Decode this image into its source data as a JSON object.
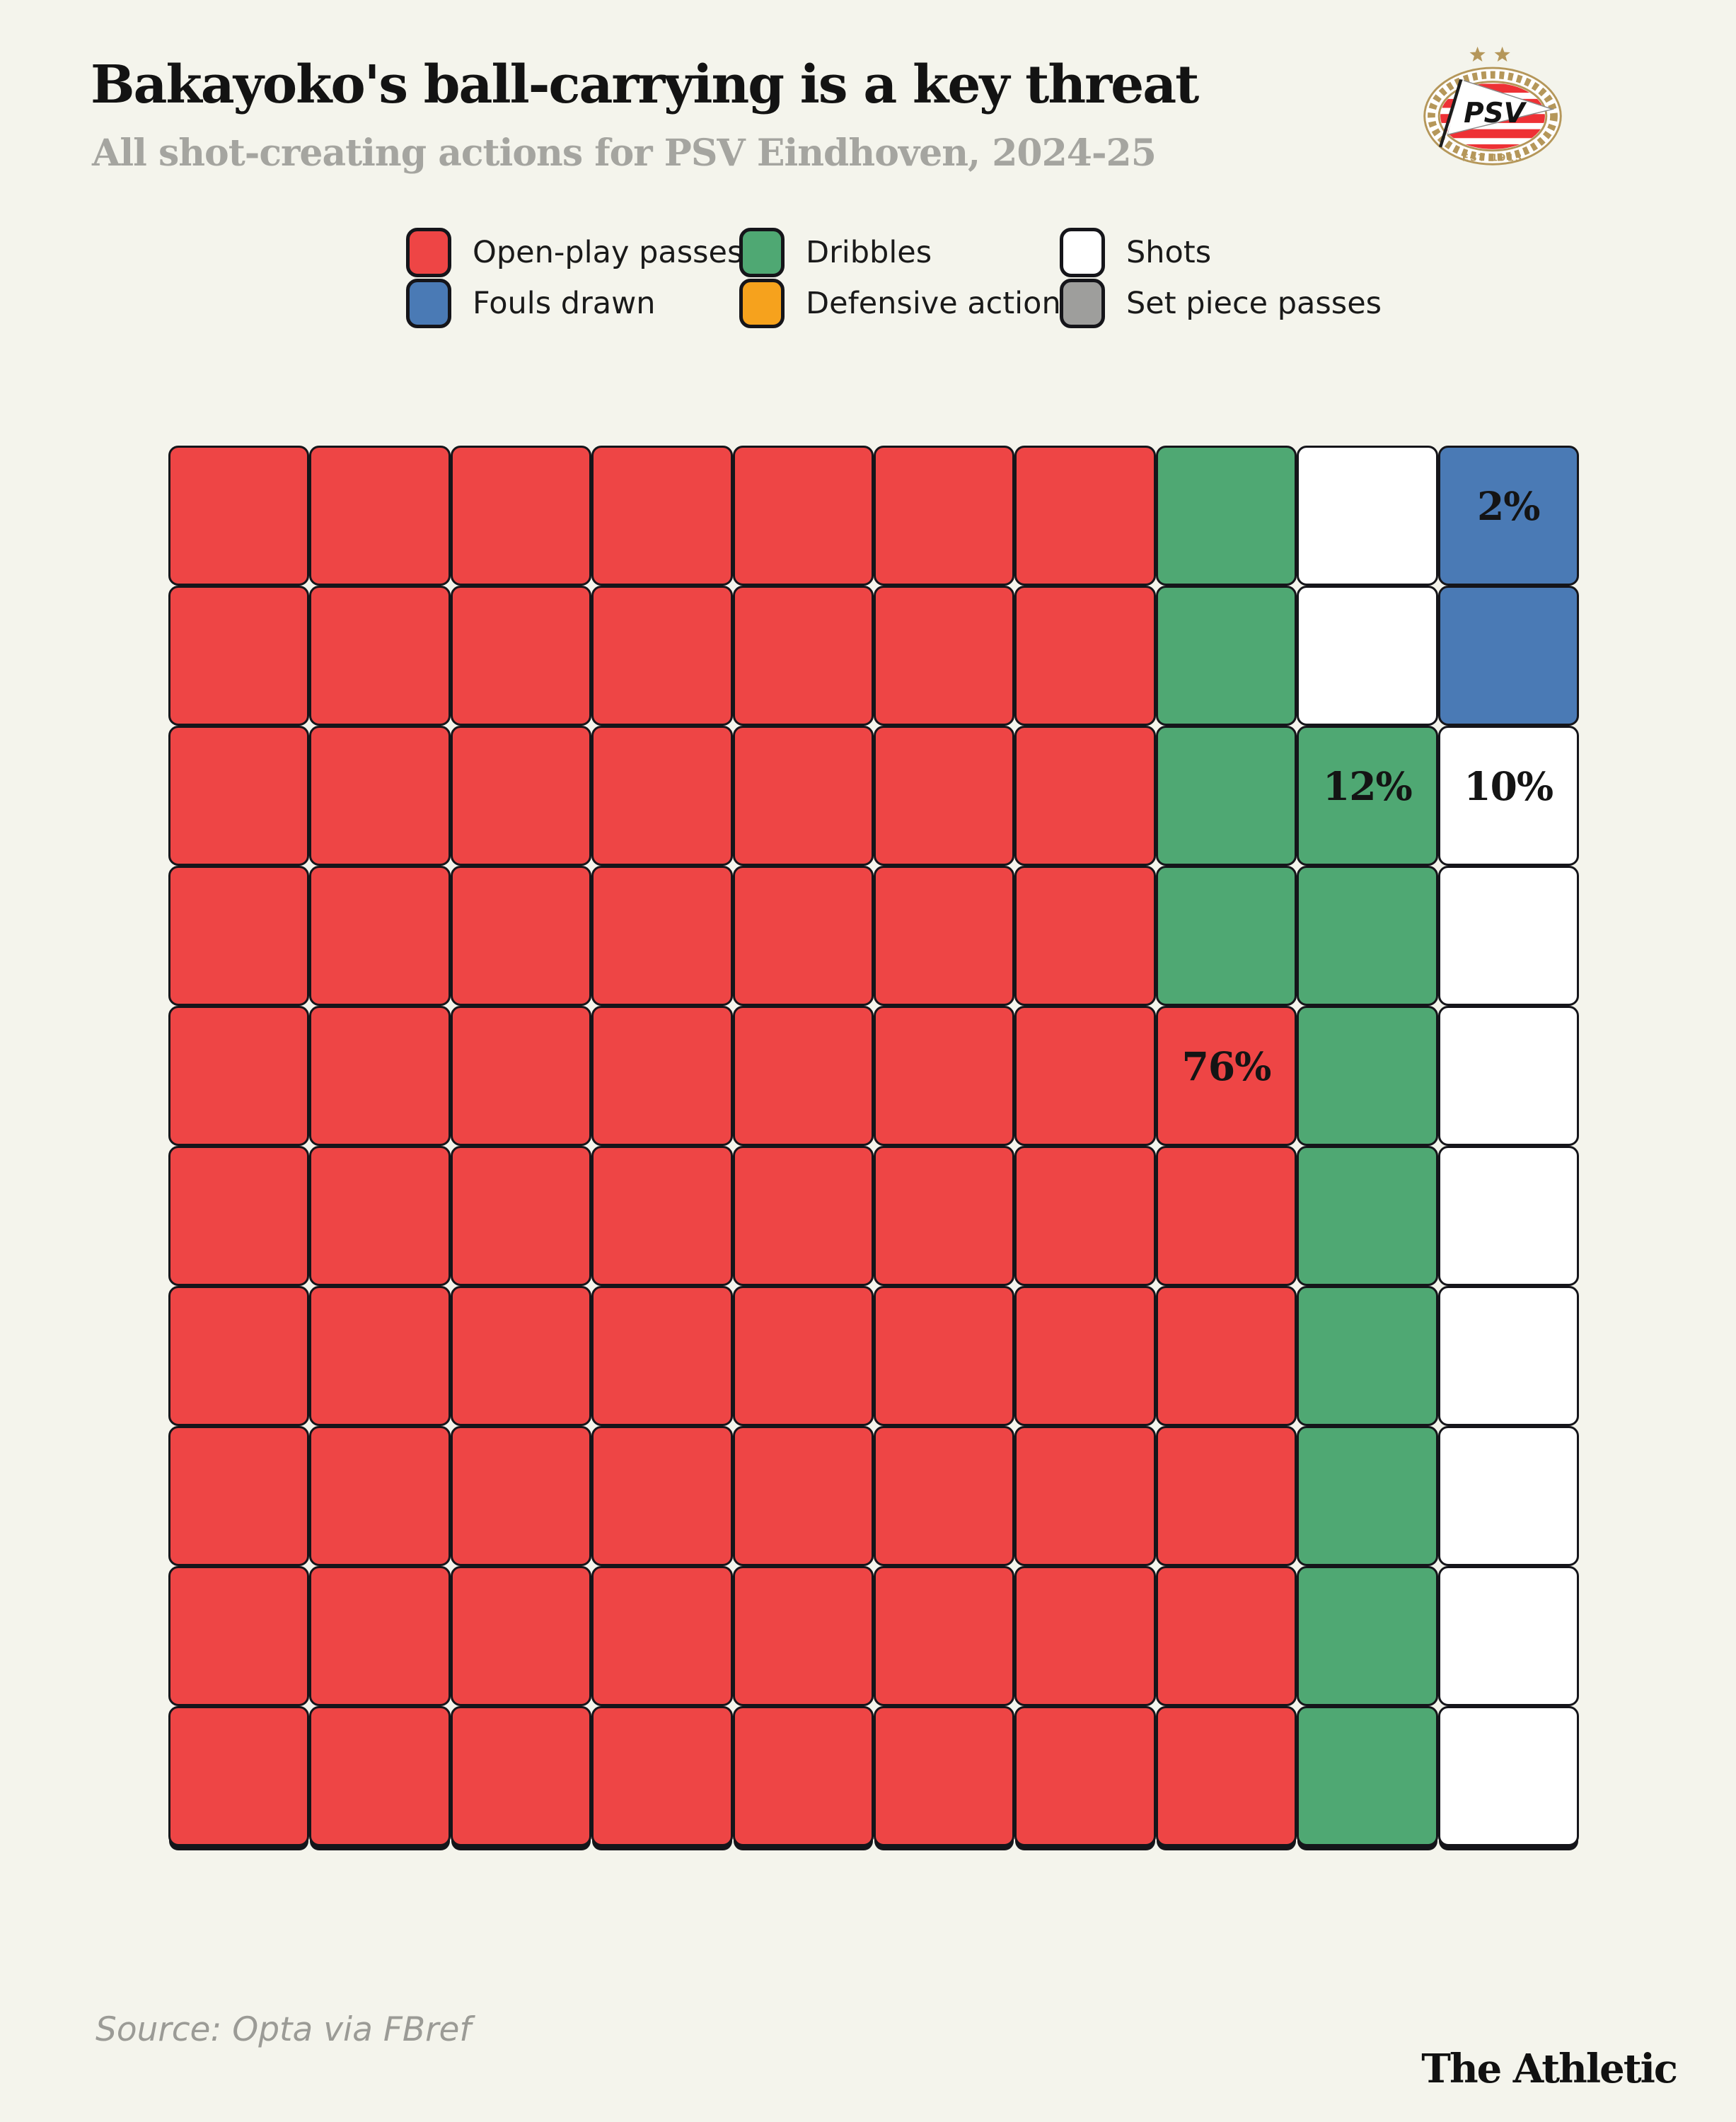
{
  "header": {
    "title": "Bakayoko's ball-carrying is a key threat",
    "subtitle": "All shot-creating actions for PSV Eindhoven, 2024-25"
  },
  "logo": {
    "team": "PSV",
    "est": "EST 1913",
    "stars": 2,
    "gold": "#B5975A",
    "stripe_red": "#EE3135",
    "text_color": "#131313"
  },
  "colors": {
    "red": "#EE4545",
    "green": "#4FA873",
    "white": "#FFFFFF",
    "blue": "#4A7AB5",
    "orange": "#F6A21D",
    "gray": "#9E9E9C",
    "background": "#F4F4EC",
    "border": "#15151a"
  },
  "legend": {
    "items": [
      {
        "label": "Open-play passes",
        "color_key": "red"
      },
      {
        "label": "Dribbles",
        "color_key": "green"
      },
      {
        "label": "Shots",
        "color_key": "white"
      },
      {
        "label": "Fouls drawn",
        "color_key": "blue"
      },
      {
        "label": "Defensive action",
        "color_key": "orange"
      },
      {
        "label": "Set piece passes",
        "color_key": "gray"
      }
    ]
  },
  "chart_data": {
    "type": "waffle",
    "title": "Bakayoko's ball-carrying is a key threat",
    "subtitle": "All shot-creating actions for PSV Eindhoven, 2024-25",
    "total_percent": 100,
    "series": [
      {
        "name": "Open-play passes",
        "value": 76,
        "color": "#EE4545"
      },
      {
        "name": "Dribbles",
        "value": 12,
        "color": "#4FA873"
      },
      {
        "name": "Shots",
        "value": 10,
        "color": "#FFFFFF"
      },
      {
        "name": "Fouls drawn",
        "value": 2,
        "color": "#4A7AB5"
      },
      {
        "name": "Defensive action",
        "value": 0,
        "color": "#F6A21D"
      },
      {
        "name": "Set piece passes",
        "value": 0,
        "color": "#9E9E9C"
      }
    ],
    "grid": {
      "rows": 10,
      "cols": 10,
      "fill_order": "columns left-to-right, bottom-to-top within column"
    },
    "cell_rows": [
      "rrrrrrrgwb",
      "rrrrrrrgwb",
      "rrrrrrrggw",
      "rrrrrrrggw",
      "rrrrrrrrgw",
      "rrrrrrrrgw",
      "rrrrrrrrgw",
      "rrrrrrrrgw",
      "rrrrrrrrgw",
      "rrrrrrrrgw"
    ],
    "key_map": {
      "r": "red",
      "g": "green",
      "w": "white",
      "b": "blue"
    },
    "labels": [
      {
        "row": 0,
        "col": 9,
        "text": "2%"
      },
      {
        "row": 2,
        "col": 8,
        "text": "12%"
      },
      {
        "row": 2,
        "col": 9,
        "text": "10%"
      },
      {
        "row": 4,
        "col": 7,
        "text": "76%"
      }
    ]
  },
  "footer": {
    "source": "Source: Opta via FBref",
    "brand": "The Athletic"
  }
}
